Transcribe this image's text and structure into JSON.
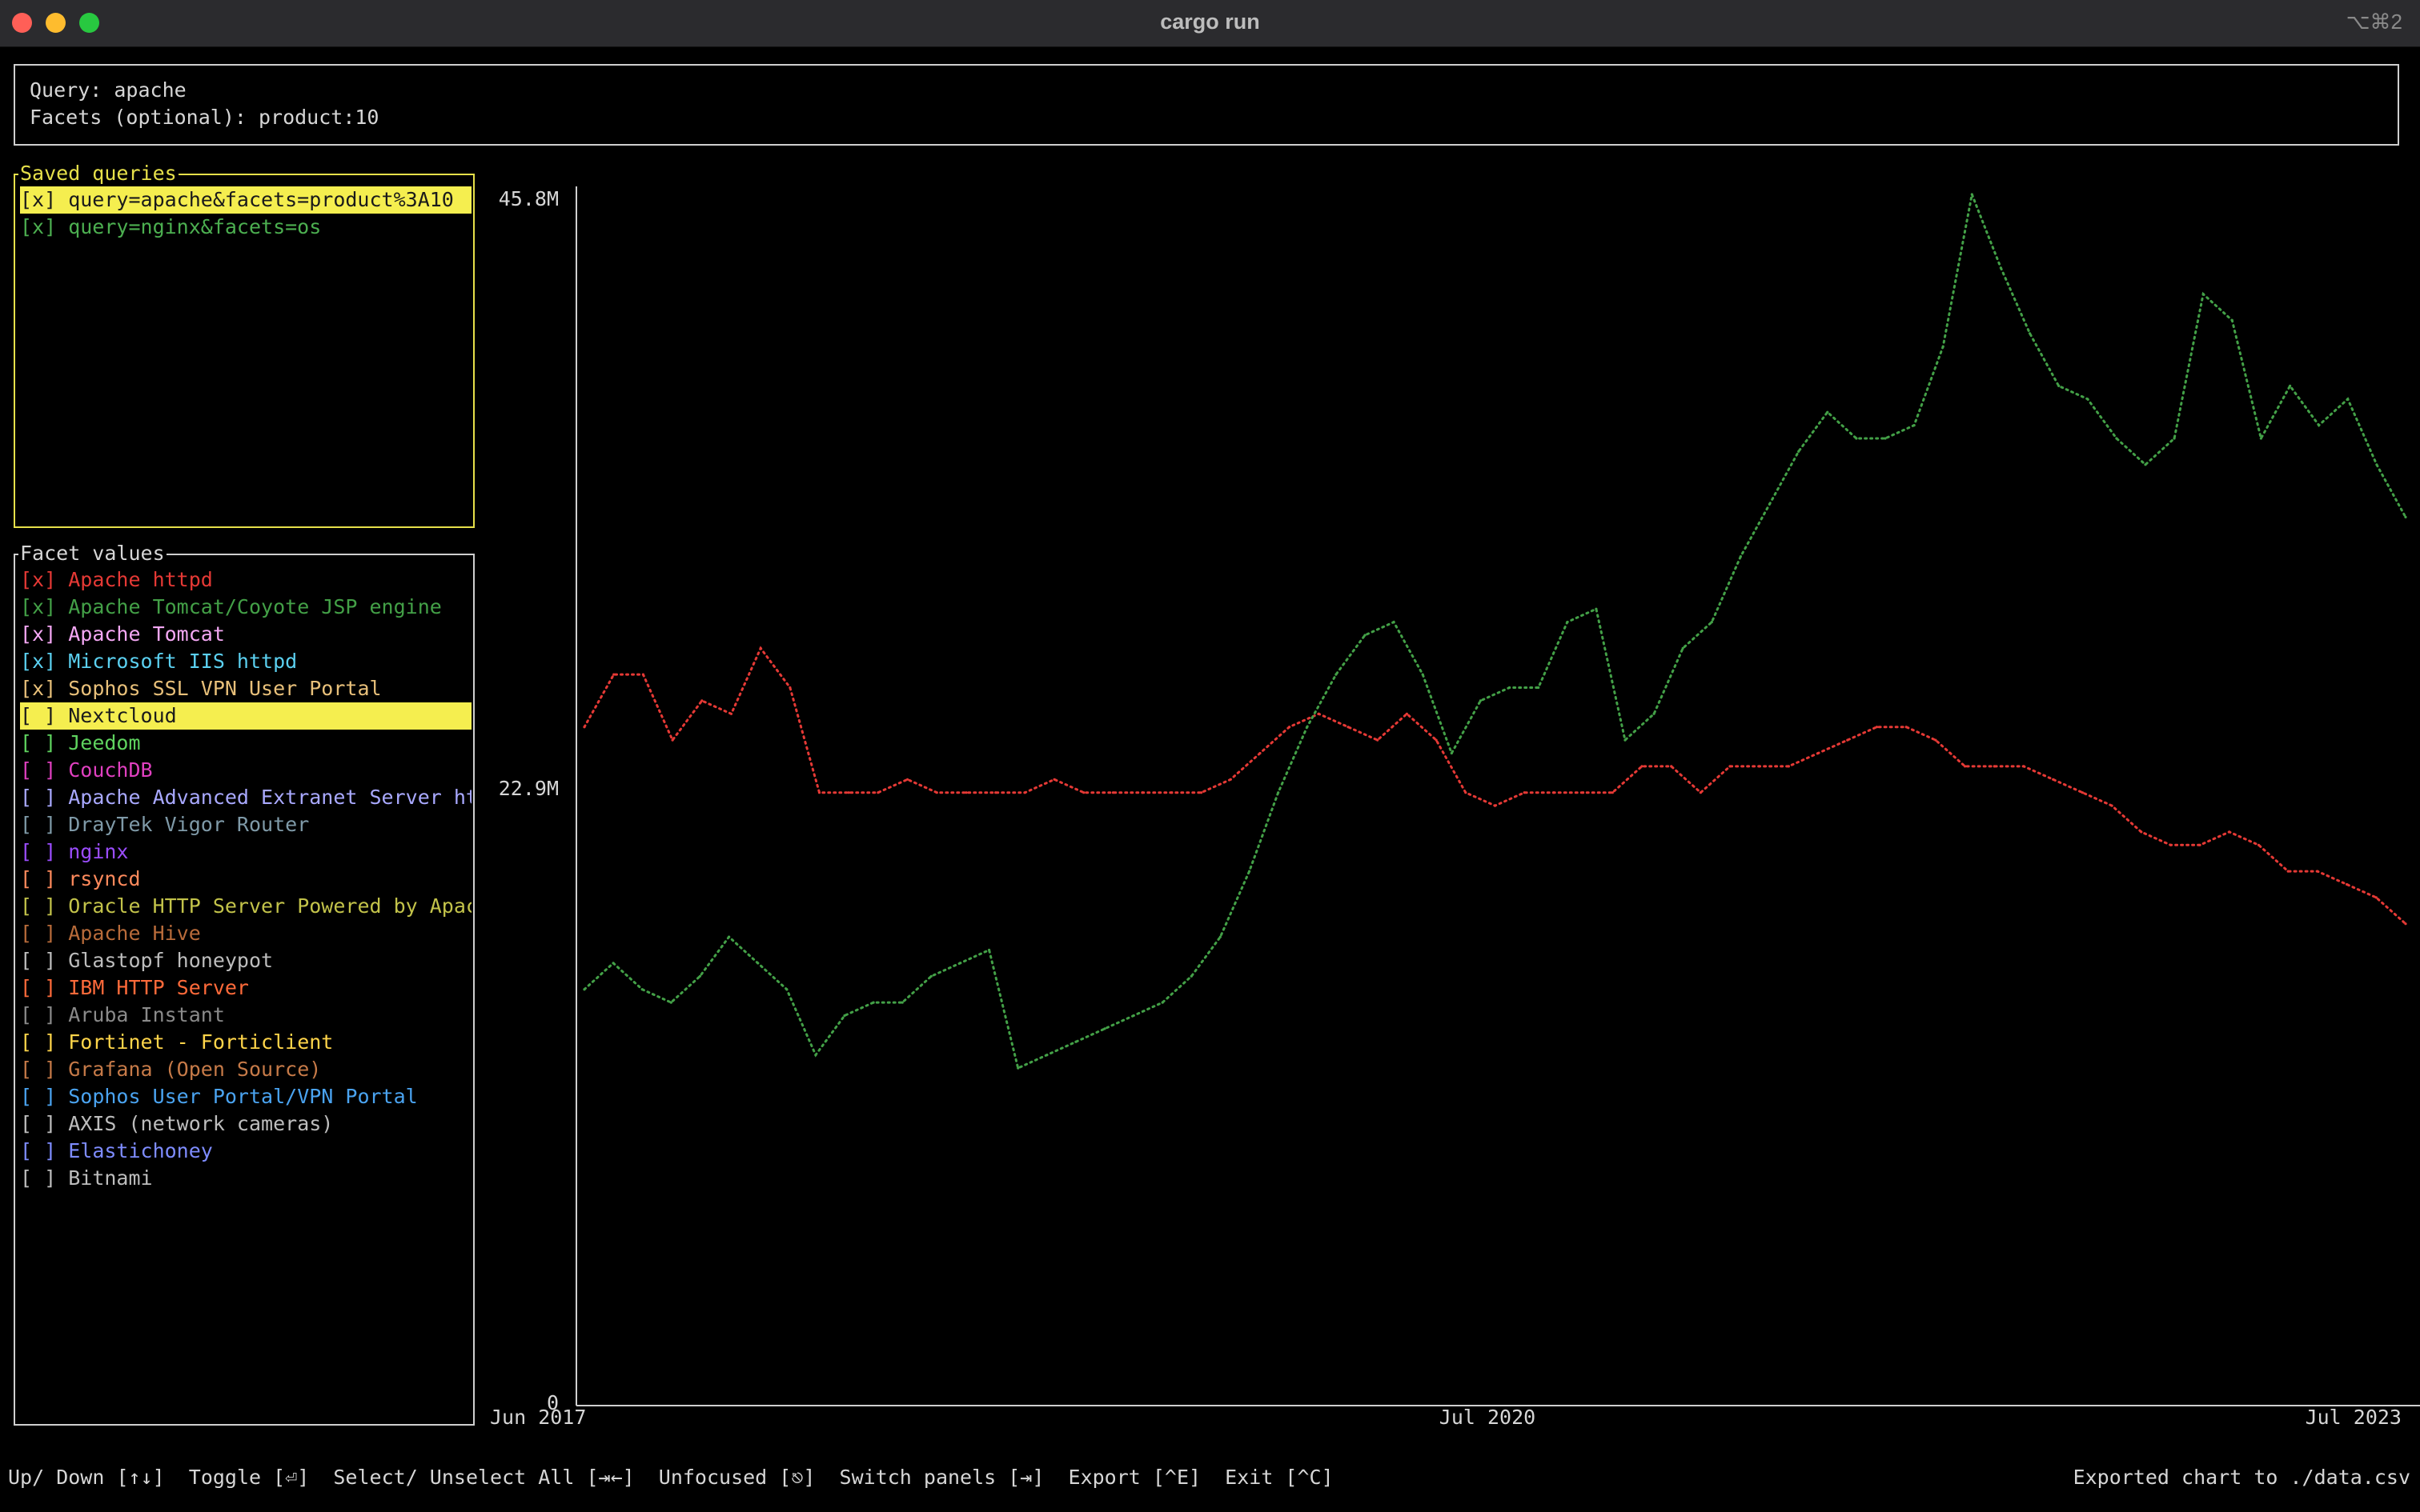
{
  "window": {
    "title": "cargo run",
    "shortcut": "⌥⌘2"
  },
  "query": {
    "query_line": "Query: apache",
    "facets_line": "Facets (optional): product:10"
  },
  "saved_queries": {
    "title": "Saved queries",
    "items": [
      {
        "text": "[x] query=apache&facets=product%3A10",
        "selected": true,
        "color": "#d6d6d6"
      },
      {
        "text": "[x] query=nginx&facets=os",
        "selected": false,
        "color": "#4caf50"
      }
    ]
  },
  "facet_values": {
    "title": "Facet values",
    "items": [
      {
        "box": "[x]",
        "label": "Apache httpd",
        "color": "#e53935"
      },
      {
        "box": "[x]",
        "label": "Apache Tomcat/Coyote JSP engine",
        "color": "#43a047"
      },
      {
        "box": "[x]",
        "label": "Apache Tomcat",
        "color": "#f5a8f5"
      },
      {
        "box": "[x]",
        "label": "Microsoft IIS httpd",
        "color": "#5bd0f0"
      },
      {
        "box": "[x]",
        "label": "Sophos SSL VPN User Portal",
        "color": "#e8c07a"
      },
      {
        "box": "[ ]",
        "label": "Nextcloud",
        "color": "#1a1a1a",
        "selected": true
      },
      {
        "box": "[ ]",
        "label": "Jeedom",
        "color": "#5fd35f"
      },
      {
        "box": "[ ]",
        "label": "CouchDB",
        "color": "#e040c0"
      },
      {
        "box": "[ ]",
        "label": "Apache Advanced Extranet Server htt",
        "color": "#a9a9ff"
      },
      {
        "box": "[ ]",
        "label": "DrayTek Vigor Router",
        "color": "#7f9aa8"
      },
      {
        "box": "[ ]",
        "label": "nginx",
        "color": "#9b4dff"
      },
      {
        "box": "[ ]",
        "label": "rsyncd",
        "color": "#ff8a5c"
      },
      {
        "box": "[ ]",
        "label": "Oracle HTTP Server Powered by Apach",
        "color": "#c3c34a"
      },
      {
        "box": "[ ]",
        "label": "Apache Hive",
        "color": "#b86b3a"
      },
      {
        "box": "[ ]",
        "label": "Glastopf honeypot",
        "color": "#bdbdbd"
      },
      {
        "box": "[ ]",
        "label": "IBM HTTP Server",
        "color": "#ff6a3a"
      },
      {
        "box": "[ ]",
        "label": "Aruba Instant",
        "color": "#8a8a8a"
      },
      {
        "box": "[ ]",
        "label": "Fortinet - Forticlient",
        "color": "#ffd54a"
      },
      {
        "box": "[ ]",
        "label": "Grafana (Open Source)",
        "color": "#c67a48"
      },
      {
        "box": "[ ]",
        "label": "Sophos User Portal/VPN Portal",
        "color": "#4aa3f0"
      },
      {
        "box": "[ ]",
        "label": "AXIS (network cameras)",
        "color": "#bdbdbd"
      },
      {
        "box": "[ ]",
        "label": "Elastichoney",
        "color": "#7e8cff"
      },
      {
        "box": "[ ]",
        "label": "Bitnami",
        "color": "#bdbdbd"
      }
    ]
  },
  "footer": {
    "keys": "Up/ Down [↑↓]  Toggle [⏎]  Select/ Unselect All [⇥←]  Unfocused [⎋]  Switch panels [⇥]  Export [^E]  Exit [^C]",
    "status": "Exported chart to ./data.csv"
  },
  "chart_data": {
    "type": "line",
    "y_ticks": [
      "45.8M",
      "22.9M",
      "0"
    ],
    "x_ticks": [
      "Jun 2017",
      "Jul 2020",
      "Jul 2023"
    ],
    "ylim": [
      0,
      45800000
    ],
    "series": [
      {
        "name": "Apache httpd",
        "color": "#e53935",
        "values": [
          25.5,
          27.5,
          27.5,
          25.0,
          26.5,
          26.0,
          28.5,
          27.0,
          23.0,
          23.0,
          23.0,
          23.5,
          23.0,
          23.0,
          23.0,
          23.0,
          23.5,
          23.0,
          23.0,
          23.0,
          23.0,
          23.0,
          23.5,
          24.5,
          25.5,
          26.0,
          25.5,
          25.0,
          26.0,
          25.0,
          23.0,
          22.5,
          23.0,
          23.0,
          23.0,
          23.0,
          24.0,
          24.0,
          23.0,
          24.0,
          24.0,
          24.0,
          24.5,
          25.0,
          25.5,
          25.5,
          25.0,
          24.0,
          24.0,
          24.0,
          23.5,
          23.0,
          22.5,
          21.5,
          21.0,
          21.0,
          21.5,
          21.0,
          20.0,
          20.0,
          19.5,
          19.0,
          18.0
        ]
      },
      {
        "name": "Apache Tomcat/Coyote JSP engine",
        "color": "#43a047",
        "values": [
          15.5,
          16.5,
          15.5,
          15.0,
          16.0,
          17.5,
          16.5,
          15.5,
          13.0,
          14.5,
          15.0,
          15.0,
          16.0,
          16.5,
          17.0,
          12.5,
          13.0,
          13.5,
          14.0,
          14.5,
          15.0,
          16.0,
          17.5,
          20.0,
          23.0,
          25.5,
          27.5,
          29.0,
          29.5,
          27.5,
          24.5,
          26.5,
          27.0,
          27.0,
          29.5,
          30.0,
          25.0,
          26.0,
          28.5,
          29.5,
          32.0,
          34.0,
          36.0,
          37.5,
          36.5,
          36.5,
          37.0,
          40.0,
          45.8,
          43.0,
          40.5,
          38.5,
          38.0,
          36.5,
          35.5,
          36.5,
          42.0,
          41.0,
          36.5,
          38.5,
          37.0,
          38.0,
          35.5,
          33.5
        ]
      }
    ]
  }
}
